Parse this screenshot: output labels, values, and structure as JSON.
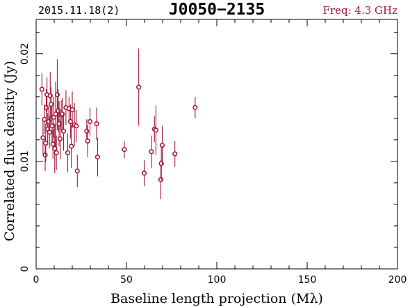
{
  "header": {
    "date_label": "2015.11.18(2)",
    "source_name": "J0050−2135",
    "freq_label": "Freq: 4.3 GHz"
  },
  "colors": {
    "axes": "#000000",
    "data": "#a01838",
    "freq": "#a01838"
  },
  "chart_data": {
    "type": "scatter",
    "title": "J0050−2135",
    "xlabel": "Baseline length projection (Mλ)",
    "ylabel": "Correlated flux density (Jy)",
    "xlim": [
      0,
      200
    ],
    "ylim": [
      0,
      0.0232
    ],
    "xticks": [
      0,
      50,
      100,
      150,
      200
    ],
    "xtick_labels": [
      "0",
      "50",
      "100",
      "150",
      "200"
    ],
    "yticks": [
      0,
      0.01,
      0.02
    ],
    "ytick_labels": [
      "0",
      "0.01",
      "0.02"
    ],
    "grid": false,
    "series": [
      {
        "x": [
          3.2,
          3.8,
          4.5,
          5.0,
          5.3,
          5.6,
          6.0,
          6.4,
          7.0,
          7.4,
          7.8,
          8.3,
          8.8,
          9.3,
          9.8,
          10.3,
          10.8,
          11.2,
          11.7,
          12.2,
          12.7,
          13.3,
          13.9,
          14.5,
          15.2,
          16.5,
          17.5,
          18.2,
          19.0,
          19.5,
          20.0,
          21.2,
          22.2,
          22.8,
          28.0,
          28.5,
          29.8,
          33.5,
          34.0,
          48.8,
          56.8,
          59.8,
          63.8,
          65.5,
          66.3,
          69.0,
          69.3,
          69.8,
          76.8,
          88.0
        ],
        "y": [
          0.0167,
          0.0122,
          0.0139,
          0.0106,
          0.0117,
          0.015,
          0.0162,
          0.013,
          0.0137,
          0.0127,
          0.0161,
          0.0153,
          0.0133,
          0.0116,
          0.0141,
          0.0112,
          0.0144,
          0.0108,
          0.0162,
          0.0147,
          0.0135,
          0.0121,
          0.0143,
          0.0144,
          0.0128,
          0.015,
          0.0108,
          0.0149,
          0.0137,
          0.0114,
          0.0148,
          0.0134,
          0.0133,
          0.0091,
          0.0128,
          0.0119,
          0.0137,
          0.0135,
          0.0104,
          0.0111,
          0.0169,
          0.0089,
          0.0109,
          0.013,
          0.0129,
          0.0083,
          0.0098,
          0.0115,
          0.0107,
          0.015
        ],
        "yerr": [
          0.0015,
          0.0016,
          0.0014,
          0.0015,
          0.0018,
          0.0017,
          0.0016,
          0.0015,
          0.0012,
          0.0015,
          0.0022,
          0.0016,
          0.0018,
          0.0014,
          0.0019,
          0.0023,
          0.003,
          0.0016,
          0.0033,
          0.002,
          0.0021,
          0.0019,
          0.0014,
          0.0015,
          0.0018,
          0.0016,
          0.0018,
          0.0011,
          0.0016,
          0.002,
          0.0017,
          0.002,
          0.0015,
          0.0015,
          0.0011,
          0.0015,
          0.0013,
          0.0015,
          0.0018,
          0.0008,
          0.0036,
          0.0012,
          0.0015,
          0.0012,
          0.0023,
          0.0018,
          0.0016,
          0.0018,
          0.0012,
          0.001
        ]
      }
    ]
  }
}
